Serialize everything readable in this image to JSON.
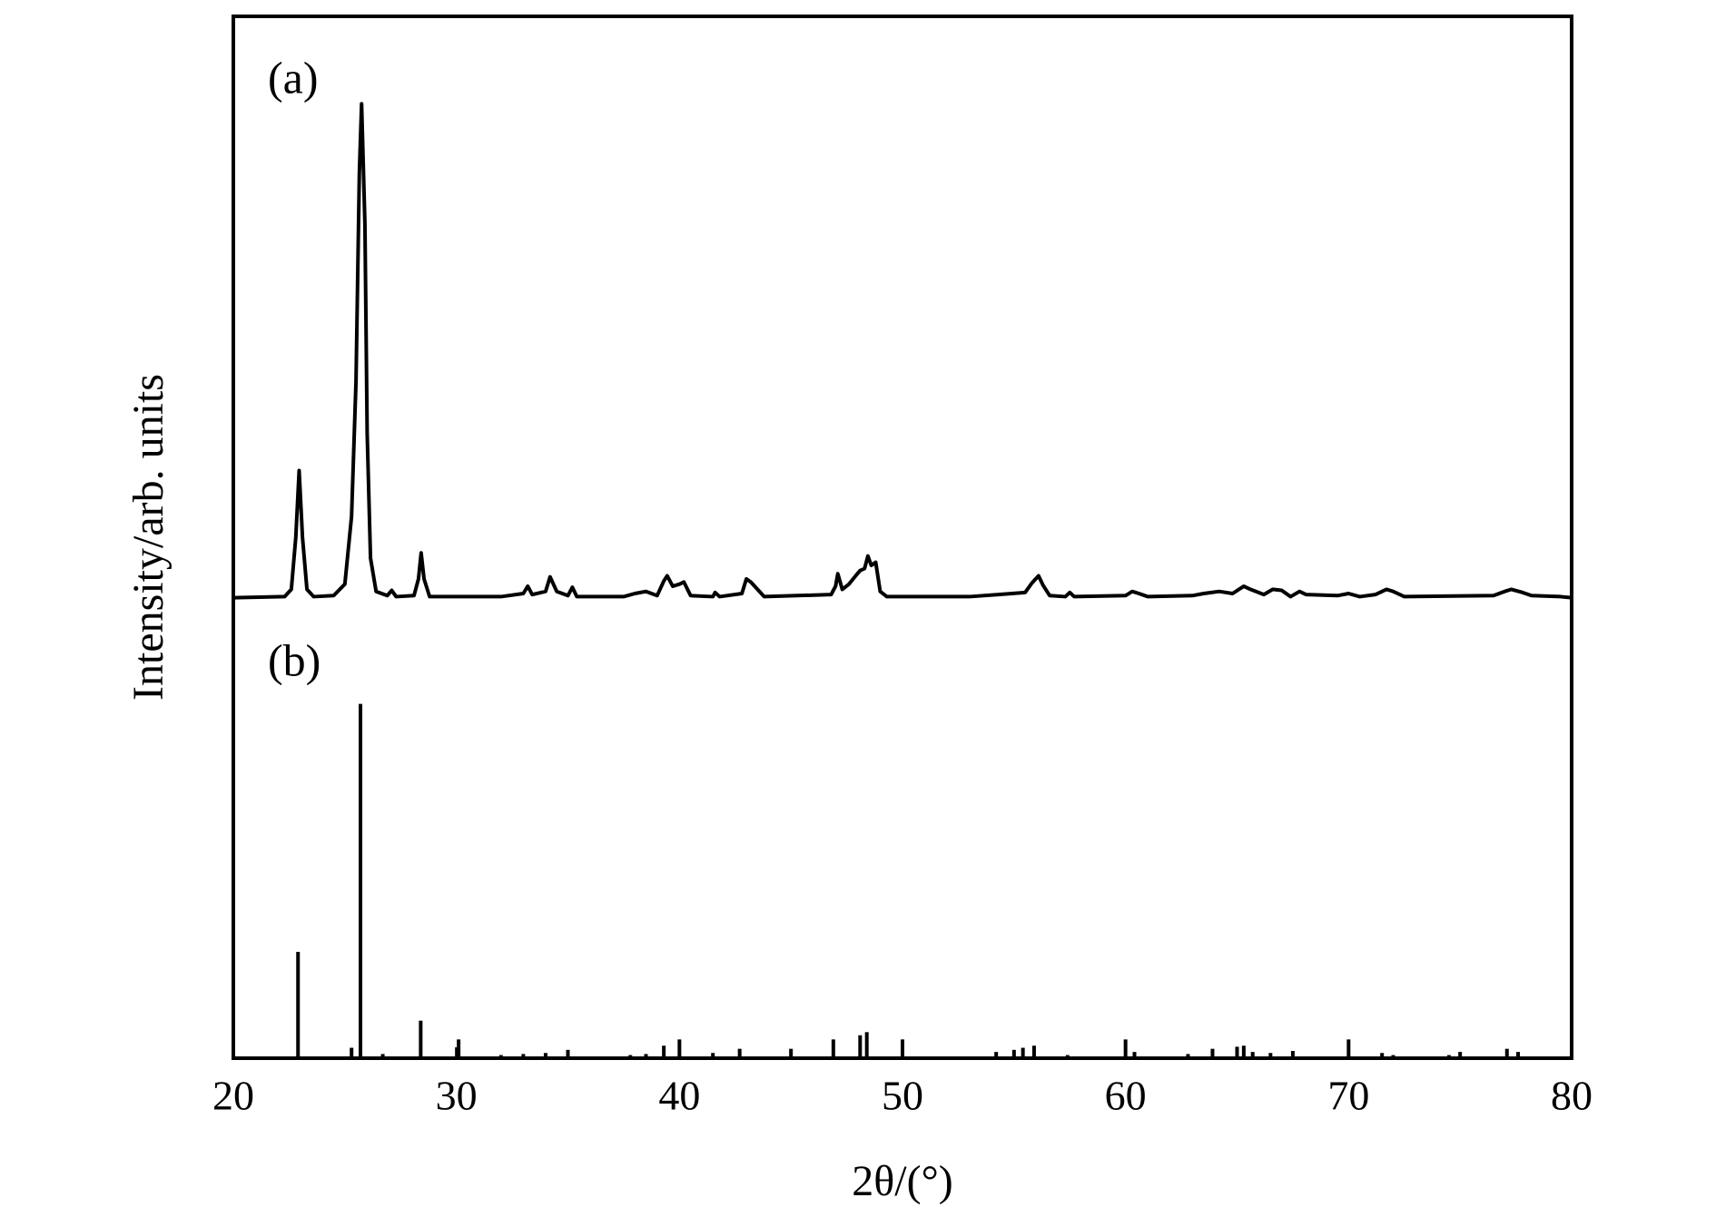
{
  "chart_data": {
    "type": "line",
    "x_label": "2θ/(°)",
    "y_label": "Intensity/arb. units",
    "xlim": [
      20,
      80
    ],
    "xticks": [
      20,
      30,
      40,
      50,
      60,
      70,
      80
    ],
    "ylim": [
      0,
      100
    ],
    "color": "#000000",
    "series": [
      {
        "name": "(a)",
        "type": "line",
        "color": "#000000",
        "x": [
          20,
          22.3,
          22.6,
          22.8,
          22.95,
          23.1,
          23.3,
          23.6,
          24.5,
          25.0,
          25.3,
          25.5,
          25.65,
          25.75,
          25.9,
          26.0,
          26.15,
          26.4,
          26.9,
          27.1,
          27.3,
          28.1,
          28.3,
          28.42,
          28.55,
          28.8,
          32,
          33.0,
          33.2,
          33.4,
          34.0,
          34.2,
          34.5,
          35.0,
          35.2,
          35.4,
          37.5,
          38.0,
          38.5,
          39.0,
          39.3,
          39.45,
          39.7,
          40.0,
          40.2,
          40.5,
          41.5,
          41.6,
          41.8,
          42.8,
          43.0,
          43.2,
          43.5,
          43.8,
          46.8,
          47.0,
          47.1,
          47.3,
          47.6,
          47.9,
          48.1,
          48.3,
          48.45,
          48.6,
          48.8,
          49.0,
          49.3,
          53,
          54.3,
          55.5,
          55.8,
          56.1,
          56.3,
          56.6,
          57.3,
          57.5,
          57.7,
          60.0,
          60.3,
          60.6,
          61.0,
          63.0,
          63.5,
          64.2,
          64.8,
          65.3,
          65.6,
          66.2,
          66.6,
          67.0,
          67.4,
          67.8,
          68.1,
          69.5,
          70,
          70.5,
          71.2,
          71.7,
          72.0,
          72.5,
          76.5,
          77.0,
          77.3,
          77.8,
          78.2,
          79.5,
          80
        ],
        "values": [
          44.2,
          44.3,
          45,
          50,
          56.4,
          50,
          45,
          44.3,
          44.4,
          45.5,
          52,
          65,
          85,
          91.6,
          80,
          60,
          48,
          44.8,
          44.4,
          44.9,
          44.3,
          44.4,
          46,
          48.5,
          46,
          44.3,
          44.3,
          44.6,
          45.3,
          44.5,
          44.8,
          46.2,
          44.8,
          44.4,
          45.2,
          44.3,
          44.3,
          44.6,
          44.8,
          44.4,
          45.8,
          46.3,
          45.3,
          45.5,
          45.7,
          44.4,
          44.3,
          44.7,
          44.3,
          44.6,
          46.0,
          45.7,
          45.0,
          44.3,
          44.5,
          45.3,
          46.5,
          45.0,
          45.5,
          46.3,
          46.8,
          47.0,
          48.2,
          47.3,
          47.6,
          44.8,
          44.3,
          44.3,
          44.5,
          44.7,
          45.6,
          46.3,
          45.4,
          44.4,
          44.3,
          44.7,
          44.3,
          44.4,
          44.8,
          44.6,
          44.3,
          44.4,
          44.6,
          44.8,
          44.6,
          45.3,
          45.0,
          44.5,
          45.0,
          44.9,
          44.3,
          44.8,
          44.5,
          44.4,
          44.6,
          44.3,
          44.5,
          45.0,
          44.8,
          44.3,
          44.4,
          44.8,
          45.0,
          44.7,
          44.4,
          44.3,
          44.2
        ]
      },
      {
        "name": "(b)",
        "type": "stick",
        "color": "#000000",
        "x": [
          22.9,
          25.3,
          25.7,
          26.7,
          28.4,
          30.1,
          32.0,
          33.0,
          34.0,
          35.0,
          37.8,
          38.5,
          39.3,
          40.0,
          41.5,
          42.7,
          45.0,
          46.9,
          48.1,
          48.4,
          50.0,
          54.2,
          55.0,
          55.4,
          55.9,
          57.4,
          60.0,
          60.4,
          62.8,
          63.9,
          65.0,
          65.3,
          65.7,
          66.5,
          67.5,
          70.0,
          71.5,
          72.0,
          74.5,
          75.0,
          77.1,
          77.6
        ],
        "values": [
          10.2,
          1.0,
          34.0,
          0.4,
          3.6,
          1.8,
          0.3,
          0.4,
          0.5,
          0.8,
          0.3,
          0.4,
          1.2,
          1.8,
          0.5,
          0.9,
          0.9,
          1.8,
          2.2,
          2.5,
          1.8,
          0.6,
          0.8,
          1.0,
          1.2,
          0.3,
          1.8,
          0.6,
          0.4,
          0.9,
          1.1,
          1.2,
          0.6,
          0.5,
          0.7,
          1.8,
          0.5,
          0.3,
          0.3,
          0.6,
          0.9,
          0.6
        ]
      }
    ]
  }
}
